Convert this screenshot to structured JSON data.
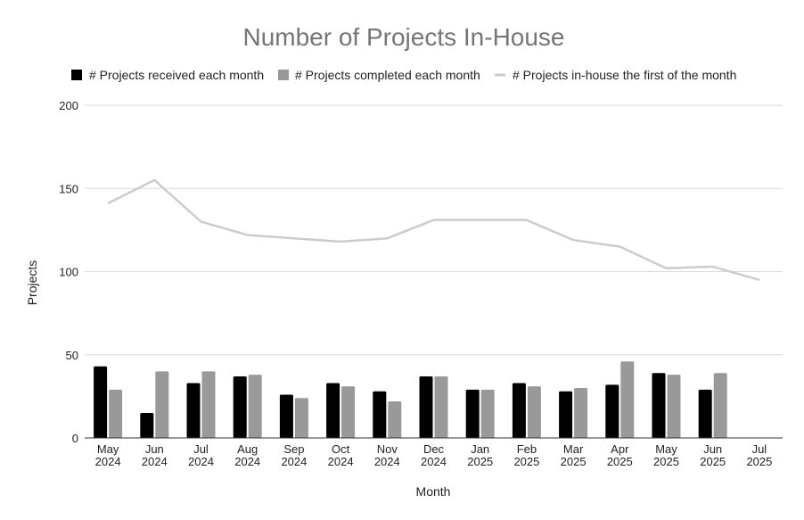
{
  "chart_data": {
    "type": "bar",
    "title": "Number of Projects In-House",
    "xlabel": "Month",
    "ylabel": "Projects",
    "ylim": [
      0,
      200
    ],
    "yticks": [
      0,
      50,
      100,
      150,
      200
    ],
    "grid": true,
    "legend_position": "top",
    "categories": [
      [
        "May",
        "2024"
      ],
      [
        "Jun",
        "2024"
      ],
      [
        "Jul",
        "2024"
      ],
      [
        "Aug",
        "2024"
      ],
      [
        "Sep",
        "2024"
      ],
      [
        "Oct",
        "2024"
      ],
      [
        "Nov",
        "2024"
      ],
      [
        "Dec",
        "2024"
      ],
      [
        "Jan",
        "2025"
      ],
      [
        "Feb",
        "2025"
      ],
      [
        "Mar",
        "2025"
      ],
      [
        "Apr",
        "2025"
      ],
      [
        "May",
        "2025"
      ],
      [
        "Jun",
        "2025"
      ],
      [
        "Jul",
        "2025"
      ]
    ],
    "series": [
      {
        "name": "# Projects received each month",
        "kind": "bar",
        "color": "#000000",
        "values": [
          43,
          15,
          33,
          37,
          26,
          33,
          28,
          37,
          29,
          33,
          28,
          32,
          39,
          29,
          null
        ]
      },
      {
        "name": "# Projects completed each month",
        "kind": "bar",
        "color": "#999999",
        "values": [
          29,
          40,
          40,
          38,
          24,
          31,
          22,
          37,
          29,
          31,
          30,
          46,
          38,
          39,
          null
        ]
      },
      {
        "name": "# Projects in-house the first of the month",
        "kind": "line",
        "color": "#cccccc",
        "values": [
          141,
          155,
          130,
          122,
          120,
          118,
          120,
          131,
          131,
          131,
          119,
          115,
          102,
          103,
          95
        ]
      }
    ]
  }
}
